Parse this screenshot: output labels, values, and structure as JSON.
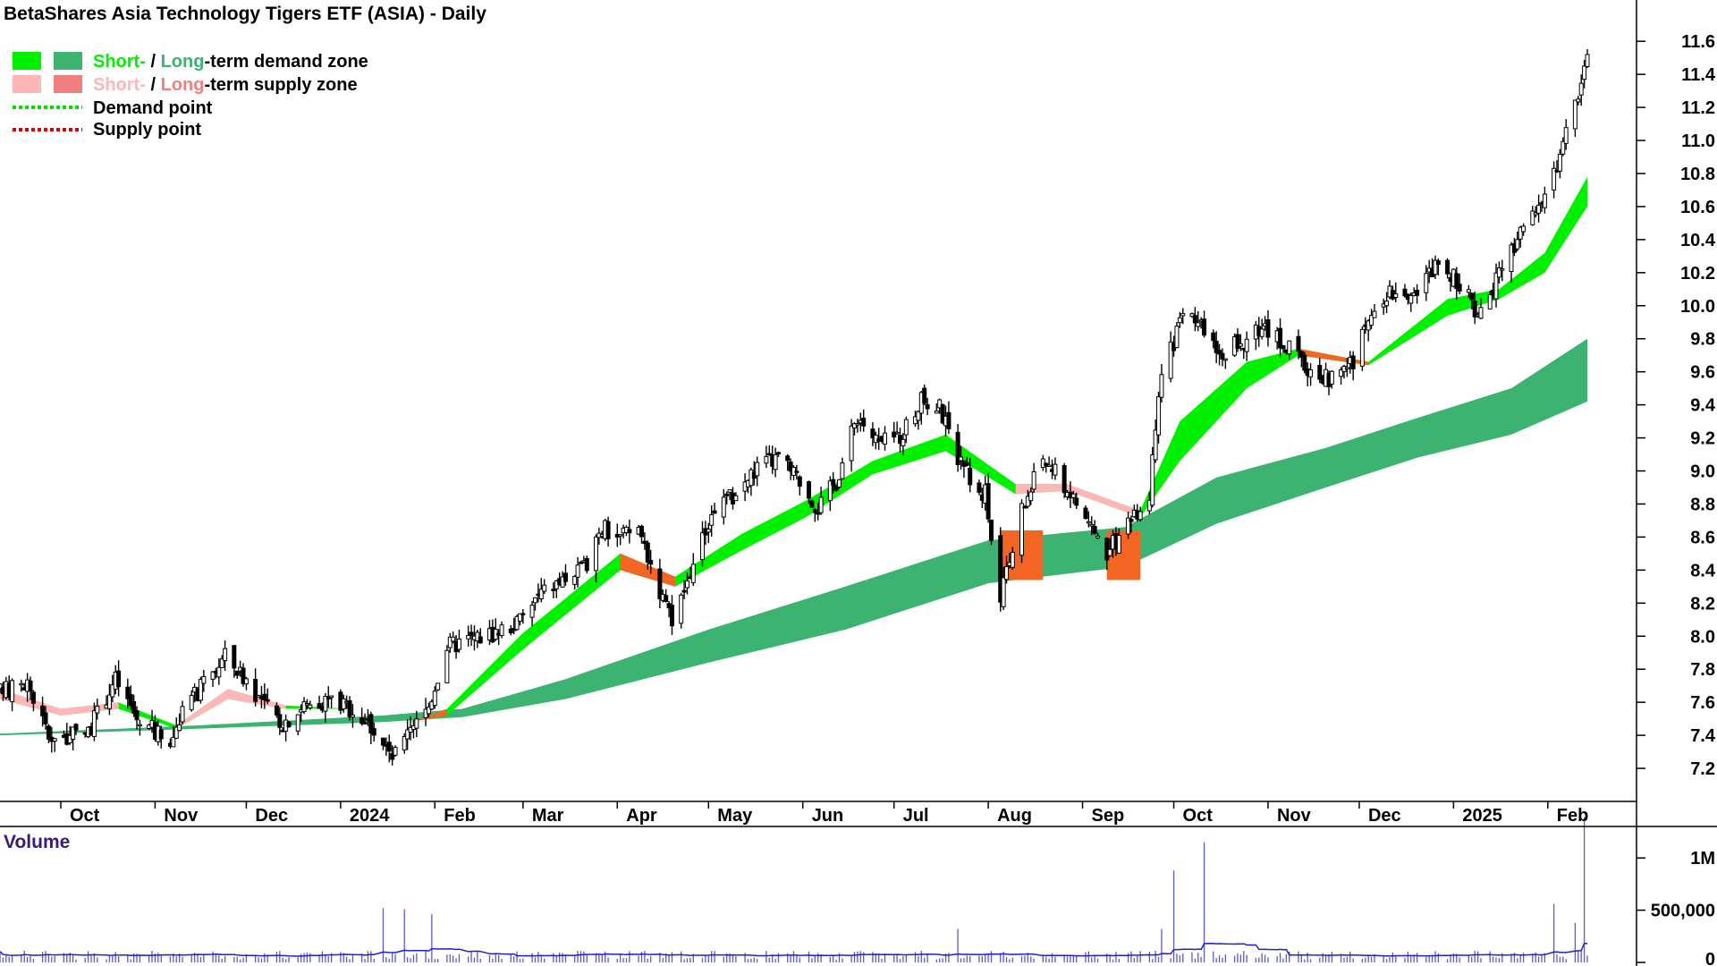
{
  "chart_data": {
    "type": "candlestick",
    "title": "BetaShares Asia Technology Tigers ETF (ASIA) - Daily",
    "legend": {
      "placement": "top-left",
      "demand_zone": {
        "short_label": "Short-",
        "separator": " / ",
        "long_label": "Long",
        "rest": "-term demand zone"
      },
      "supply_zone": {
        "short_label": "Short-",
        "separator": " / ",
        "long_label": "Long",
        "rest": "-term supply zone"
      },
      "demand_point": "Demand point",
      "supply_point": "Supply point"
    },
    "colors": {
      "short_demand": "#00f000",
      "long_demand": "#3cb371",
      "short_supply": "#ffb6b6",
      "long_supply": "#f08080",
      "zone_orange": "#f26522",
      "demand_point": "#00dd00",
      "supply_point": "#e00000",
      "volume_bar": "#5a5acd",
      "volume_avg": "#1e1ed6",
      "axis": "#000000"
    },
    "x_axis": {
      "labels": [
        "Oct",
        "Nov",
        "Dec",
        "2024",
        "Feb",
        "Mar",
        "Apr",
        "May",
        "Jun",
        "Jul",
        "Aug",
        "Sep",
        "Oct",
        "Nov",
        "Dec",
        "2025",
        "Feb"
      ],
      "start_date": "2023-09-11",
      "end_date": "2025-02-14"
    },
    "y_axis": {
      "range": [
        7.0,
        11.85
      ],
      "ticks": [
        "7.2",
        "7.4",
        "7.6",
        "7.8",
        "8.0",
        "8.2",
        "8.4",
        "8.6",
        "8.8",
        "9.0",
        "9.2",
        "9.4",
        "9.6",
        "9.8",
        "10.0",
        "10.2",
        "10.4",
        "10.6",
        "10.8",
        "11.0",
        "11.2",
        "11.4",
        "11.6"
      ]
    },
    "price_path": [
      [
        "2023-09-11",
        7.66
      ],
      [
        "2023-09-20",
        7.72
      ],
      [
        "2023-09-27",
        7.4
      ],
      [
        "2023-10-03",
        7.38
      ],
      [
        "2023-10-10",
        7.42
      ],
      [
        "2023-10-16",
        7.64
      ],
      [
        "2023-10-19",
        7.74
      ],
      [
        "2023-10-26",
        7.5
      ],
      [
        "2023-11-01",
        7.42
      ],
      [
        "2023-11-06",
        7.38
      ],
      [
        "2023-11-13",
        7.62
      ],
      [
        "2023-11-20",
        7.78
      ],
      [
        "2023-11-24",
        7.88
      ],
      [
        "2023-12-01",
        7.74
      ],
      [
        "2023-12-07",
        7.58
      ],
      [
        "2023-12-13",
        7.48
      ],
      [
        "2023-12-20",
        7.58
      ],
      [
        "2023-12-28",
        7.62
      ],
      [
        "2024-01-05",
        7.56
      ],
      [
        "2024-01-12",
        7.44
      ],
      [
        "2024-01-18",
        7.26
      ],
      [
        "2024-01-25",
        7.44
      ],
      [
        "2024-01-30",
        7.58
      ],
      [
        "2024-02-05",
        7.94
      ],
      [
        "2024-02-12",
        7.98
      ],
      [
        "2024-02-20",
        8.02
      ],
      [
        "2024-02-28",
        8.08
      ],
      [
        "2024-03-07",
        8.26
      ],
      [
        "2024-03-14",
        8.34
      ],
      [
        "2024-03-21",
        8.4
      ],
      [
        "2024-03-26",
        8.66
      ],
      [
        "2024-04-02",
        8.6
      ],
      [
        "2024-04-08",
        8.66
      ],
      [
        "2024-04-15",
        8.28
      ],
      [
        "2024-04-19",
        8.06
      ],
      [
        "2024-04-26",
        8.44
      ],
      [
        "2024-05-03",
        8.78
      ],
      [
        "2024-05-10",
        8.86
      ],
      [
        "2024-05-17",
        9.02
      ],
      [
        "2024-05-24",
        9.08
      ],
      [
        "2024-05-31",
        8.94
      ],
      [
        "2024-06-06",
        8.78
      ],
      [
        "2024-06-12",
        8.94
      ],
      [
        "2024-06-19",
        9.34
      ],
      [
        "2024-06-26",
        9.16
      ],
      [
        "2024-07-03",
        9.22
      ],
      [
        "2024-07-10",
        9.42
      ],
      [
        "2024-07-16",
        9.38
      ],
      [
        "2024-07-24",
        9.0
      ],
      [
        "2024-07-31",
        8.86
      ],
      [
        "2024-08-05",
        8.22
      ],
      [
        "2024-08-12",
        8.76
      ],
      [
        "2024-08-19",
        9.08
      ],
      [
        "2024-08-26",
        8.92
      ],
      [
        "2024-09-02",
        8.72
      ],
      [
        "2024-09-09",
        8.5
      ],
      [
        "2024-09-16",
        8.68
      ],
      [
        "2024-09-23",
        8.86
      ],
      [
        "2024-09-27",
        9.58
      ],
      [
        "2024-10-04",
        9.94
      ],
      [
        "2024-10-11",
        9.84
      ],
      [
        "2024-10-18",
        9.72
      ],
      [
        "2024-10-25",
        9.8
      ],
      [
        "2024-11-01",
        9.86
      ],
      [
        "2024-11-08",
        9.74
      ],
      [
        "2024-11-15",
        9.6
      ],
      [
        "2024-11-22",
        9.56
      ],
      [
        "2024-11-29",
        9.66
      ],
      [
        "2024-12-06",
        9.98
      ],
      [
        "2024-12-13",
        10.12
      ],
      [
        "2024-12-20",
        10.08
      ],
      [
        "2024-12-27",
        10.28
      ],
      [
        "2025-01-03",
        10.12
      ],
      [
        "2025-01-10",
        9.94
      ],
      [
        "2025-01-15",
        10.14
      ],
      [
        "2025-01-22",
        10.38
      ],
      [
        "2025-01-28",
        10.62
      ],
      [
        "2025-02-04",
        10.82
      ],
      [
        "2025-02-10",
        11.24
      ],
      [
        "2025-02-14",
        11.48
      ]
    ],
    "short_term_zone": [
      [
        "2023-09-11",
        7.62,
        7.68
      ],
      [
        "2023-10-01",
        7.52,
        7.56
      ],
      [
        "2023-10-20",
        7.56,
        7.6
      ],
      [
        "2023-11-08",
        7.44,
        7.46
      ],
      [
        "2023-11-25",
        7.62,
        7.68
      ],
      [
        "2023-12-14",
        7.56,
        7.58
      ],
      [
        "2024-01-05",
        7.56,
        7.56
      ],
      [
        "2024-01-24",
        7.48,
        7.48
      ],
      [
        "2024-02-05",
        7.52,
        7.56
      ],
      [
        "2024-03-01",
        7.92,
        8.02
      ],
      [
        "2024-04-02",
        8.4,
        8.5
      ],
      [
        "2024-04-20",
        8.3,
        8.36
      ],
      [
        "2024-05-12",
        8.52,
        8.62
      ],
      [
        "2024-06-02",
        8.72,
        8.82
      ],
      [
        "2024-06-24",
        8.98,
        9.06
      ],
      [
        "2024-07-18",
        9.12,
        9.22
      ],
      [
        "2024-08-10",
        8.86,
        8.92
      ],
      [
        "2024-08-27",
        8.88,
        8.92
      ],
      [
        "2024-09-20",
        8.72,
        8.76
      ],
      [
        "2024-10-03",
        9.06,
        9.3
      ],
      [
        "2024-10-25",
        9.5,
        9.66
      ],
      [
        "2024-11-11",
        9.7,
        9.74
      ],
      [
        "2024-12-04",
        9.64,
        9.66
      ],
      [
        "2024-12-30",
        9.94,
        10.04
      ],
      [
        "2025-01-16",
        10.04,
        10.1
      ],
      [
        "2025-01-31",
        10.2,
        10.32
      ],
      [
        "2025-02-14",
        10.6,
        10.78
      ]
    ],
    "long_term_zone": [
      [
        "2023-09-11",
        7.4,
        7.41
      ],
      [
        "2023-11-15",
        7.44,
        7.46
      ],
      [
        "2024-01-15",
        7.48,
        7.52
      ],
      [
        "2024-02-10",
        7.51,
        7.56
      ],
      [
        "2024-03-15",
        7.62,
        7.74
      ],
      [
        "2024-05-01",
        7.84,
        8.04
      ],
      [
        "2024-06-15",
        8.04,
        8.3
      ],
      [
        "2024-08-01",
        8.32,
        8.58
      ],
      [
        "2024-09-15",
        8.42,
        8.66
      ],
      [
        "2024-10-15",
        8.68,
        8.96
      ],
      [
        "2024-11-20",
        8.9,
        9.14
      ],
      [
        "2024-12-20",
        9.08,
        9.32
      ],
      [
        "2025-01-20",
        9.22,
        9.5
      ],
      [
        "2025-02-14",
        9.42,
        9.8
      ]
    ],
    "volume": {
      "title": "Volume",
      "ticks": [
        "1M",
        "500,000",
        "0"
      ],
      "range": [
        0,
        1250000
      ],
      "typical": 70000,
      "spikes": [
        [
          "2024-01-15",
          520000
        ],
        [
          "2024-01-22",
          510000
        ],
        [
          "2024-01-31",
          460000
        ],
        [
          "2024-07-22",
          320000
        ],
        [
          "2024-09-27",
          320000
        ],
        [
          "2024-10-01",
          880000
        ],
        [
          "2024-10-11",
          1150000
        ],
        [
          "2025-02-03",
          560000
        ],
        [
          "2025-02-10",
          380000
        ],
        [
          "2025-02-13",
          1390000
        ]
      ]
    }
  }
}
